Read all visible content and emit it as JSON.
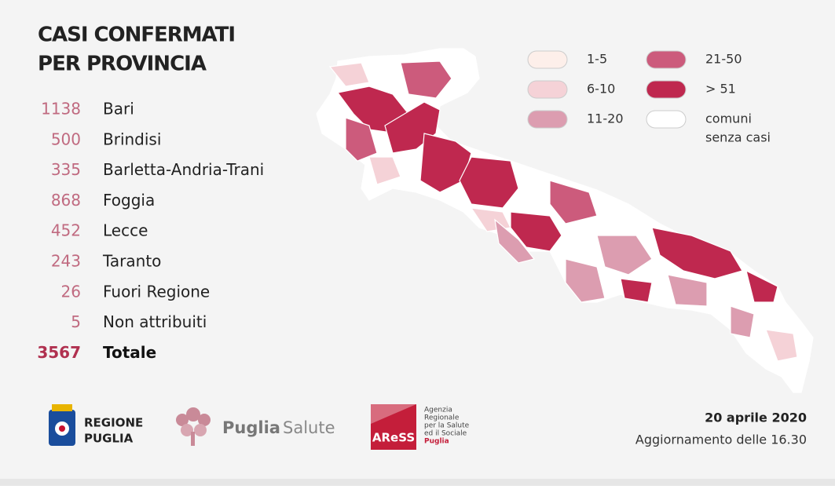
{
  "title_lines": [
    "CASI CONFERMATI",
    "PER PROVINCIA"
  ],
  "provinces": [
    {
      "count": 1138,
      "name": "Bari"
    },
    {
      "count": 500,
      "name": "Brindisi"
    },
    {
      "count": 335,
      "name": "Barletta-Andria-Trani"
    },
    {
      "count": 868,
      "name": "Foggia"
    },
    {
      "count": 452,
      "name": "Lecce"
    },
    {
      "count": 243,
      "name": "Taranto"
    },
    {
      "count": 26,
      "name": "Fuori Regione"
    },
    {
      "count": 5,
      "name": "Non attribuiti"
    }
  ],
  "total": {
    "count": 3567,
    "name": "Totale"
  },
  "legend": [
    {
      "lines": [
        "1-5"
      ],
      "color": "#fdefea"
    },
    {
      "lines": [
        "6-10"
      ],
      "color": "#f5d2d7"
    },
    {
      "lines": [
        "11-20"
      ],
      "color": "#dc9db0"
    },
    {
      "lines": [
        "21-50"
      ],
      "color": "#cc5b7c"
    },
    {
      "lines": [
        "> 51"
      ],
      "color": "#bf284f"
    },
    {
      "lines": [
        "comuni",
        "senza casi"
      ],
      "color": "#ffffff"
    }
  ],
  "footer": {
    "date": "20 aprile 2020",
    "update": "Aggiornamento delle 16.30"
  },
  "logos": {
    "regione": [
      "REGIONE",
      "PUGLIA"
    ],
    "puglia_salute": [
      "Puglia",
      "Salute"
    ],
    "ares": {
      "mark": "AReSS",
      "lines": [
        "Agenzia",
        "Regionale",
        "per la Salute",
        "ed il Sociale",
        "Puglia"
      ]
    }
  }
}
